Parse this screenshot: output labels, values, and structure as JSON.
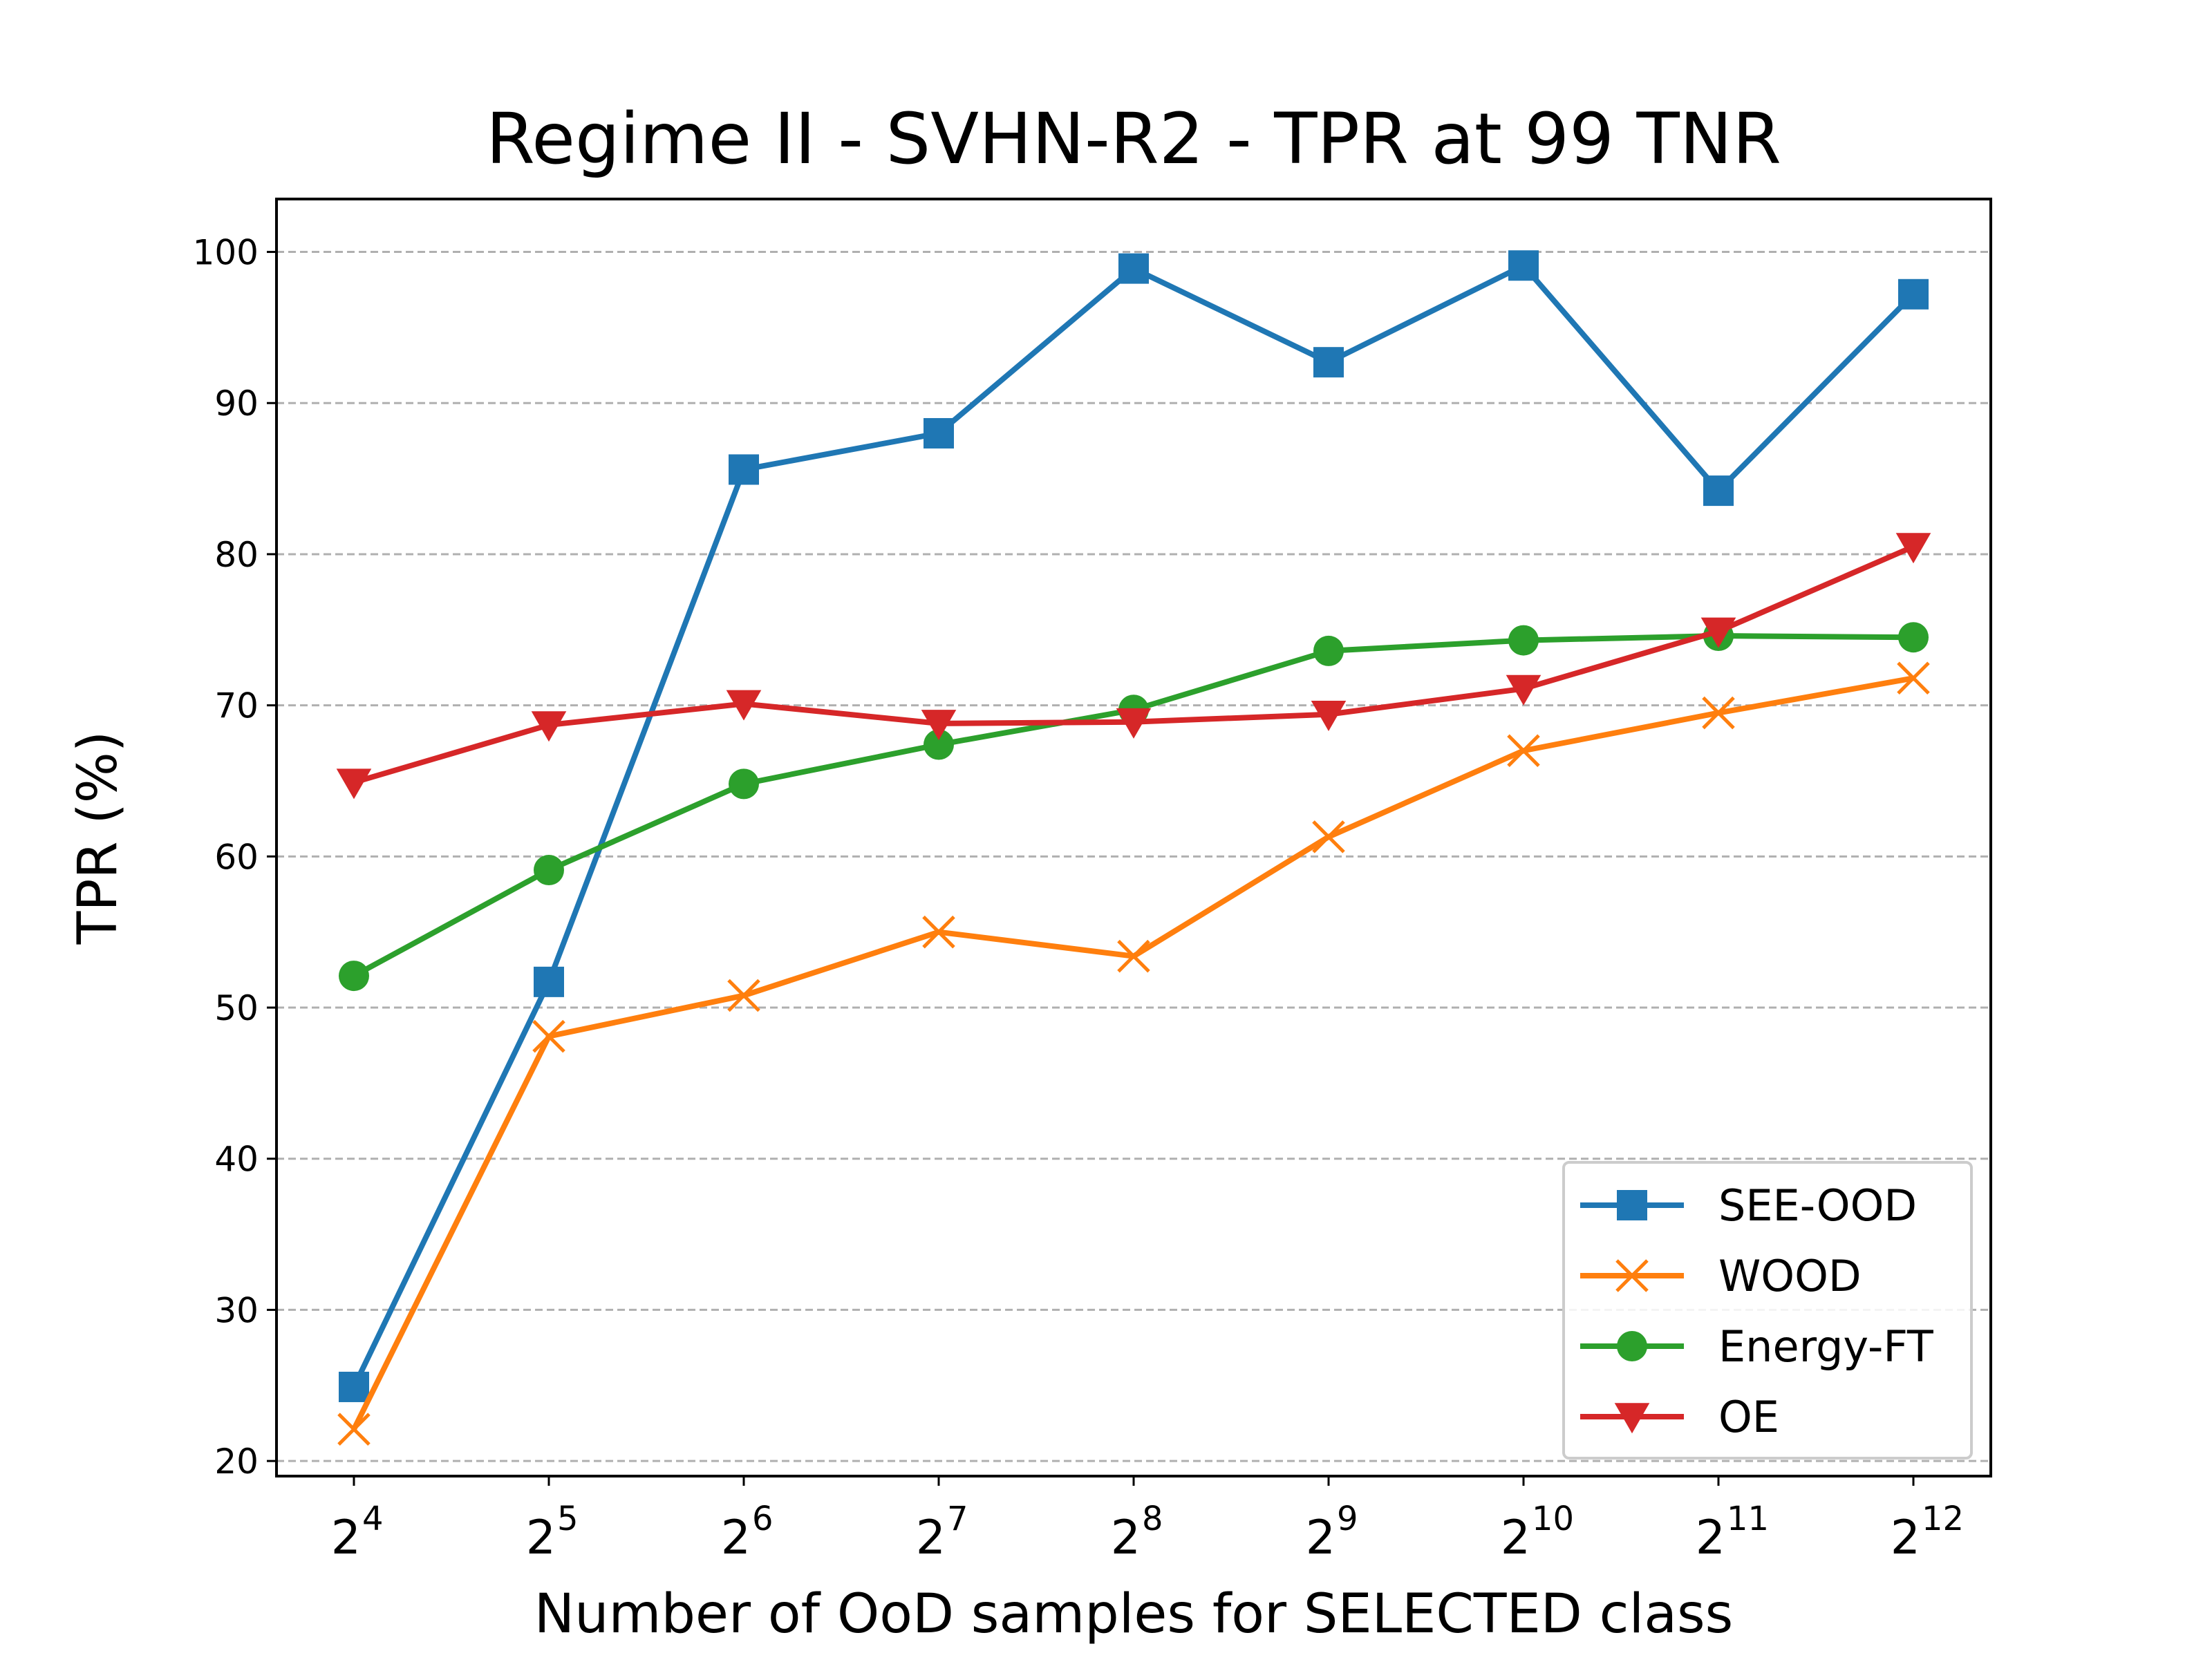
{
  "chart_data": {
    "type": "line",
    "title": "Regime II - SVHN-R2 - TPR at 99 TNR",
    "xlabel": "Number of OoD samples for SELECTED class",
    "ylabel": "TPR (%)",
    "x_tick_labels": [
      {
        "base": "2",
        "exp": "4"
      },
      {
        "base": "2",
        "exp": "5"
      },
      {
        "base": "2",
        "exp": "6"
      },
      {
        "base": "2",
        "exp": "7"
      },
      {
        "base": "2",
        "exp": "8"
      },
      {
        "base": "2",
        "exp": "9"
      },
      {
        "base": "2",
        "exp": "10"
      },
      {
        "base": "2",
        "exp": "11"
      },
      {
        "base": "2",
        "exp": "12"
      }
    ],
    "x": [
      16,
      32,
      64,
      128,
      256,
      512,
      1024,
      2048,
      4096
    ],
    "x_scale": "log2",
    "ylim": [
      19,
      103.5
    ],
    "y_ticks": [
      20,
      30,
      40,
      50,
      60,
      70,
      80,
      90,
      100
    ],
    "grid": "horizontal dashed",
    "legend_position": "lower-right",
    "series": [
      {
        "name": "SEE-OOD",
        "color": "#1f77b4",
        "marker": "square",
        "values": [
          24.9,
          51.7,
          85.6,
          88.0,
          98.9,
          92.7,
          99.1,
          84.2,
          97.2
        ]
      },
      {
        "name": "WOOD",
        "color": "#ff7f0e",
        "marker": "x",
        "values": [
          22.1,
          48.1,
          50.8,
          55.0,
          53.4,
          61.3,
          67.0,
          69.5,
          71.8
        ]
      },
      {
        "name": "Energy-FT",
        "color": "#2ca02c",
        "marker": "circle",
        "values": [
          52.1,
          59.1,
          64.8,
          67.4,
          69.7,
          73.6,
          74.3,
          74.6,
          74.5
        ]
      },
      {
        "name": "OE",
        "color": "#d62728",
        "marker": "triangle-down",
        "values": [
          64.9,
          68.7,
          70.1,
          68.8,
          68.9,
          69.4,
          71.1,
          74.9,
          80.5
        ]
      }
    ]
  }
}
